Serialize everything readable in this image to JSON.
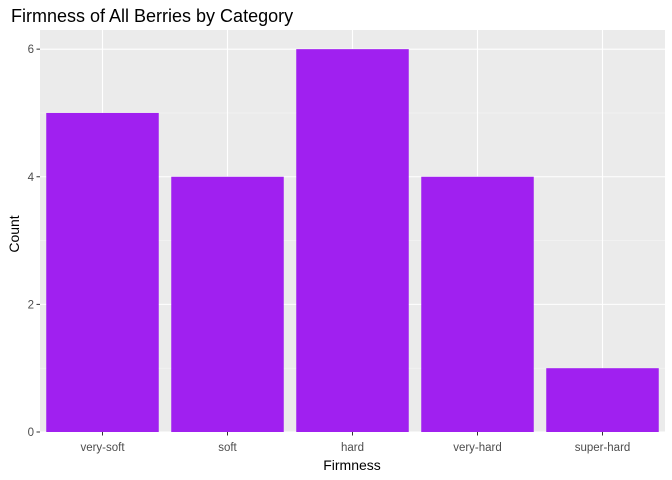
{
  "chart_data": {
    "type": "bar",
    "title": "Firmness of All Berries by Category",
    "xlabel": "Firmness",
    "ylabel": "Count",
    "categories": [
      "very-soft",
      "soft",
      "hard",
      "very-hard",
      "super-hard"
    ],
    "values": [
      5,
      4,
      6,
      4,
      1
    ],
    "ylim": [
      0,
      6.3
    ],
    "yticks": [
      "0",
      "2",
      "4",
      "6"
    ],
    "grid": true,
    "colors": {
      "bar": "#A020F0",
      "panel_background": "#EBEBEB",
      "grid_major": "#FFFFFF",
      "grid_minor": "#F5F5F5",
      "tick_text": "#4D4D4D",
      "tick_mark": "#333333"
    }
  }
}
